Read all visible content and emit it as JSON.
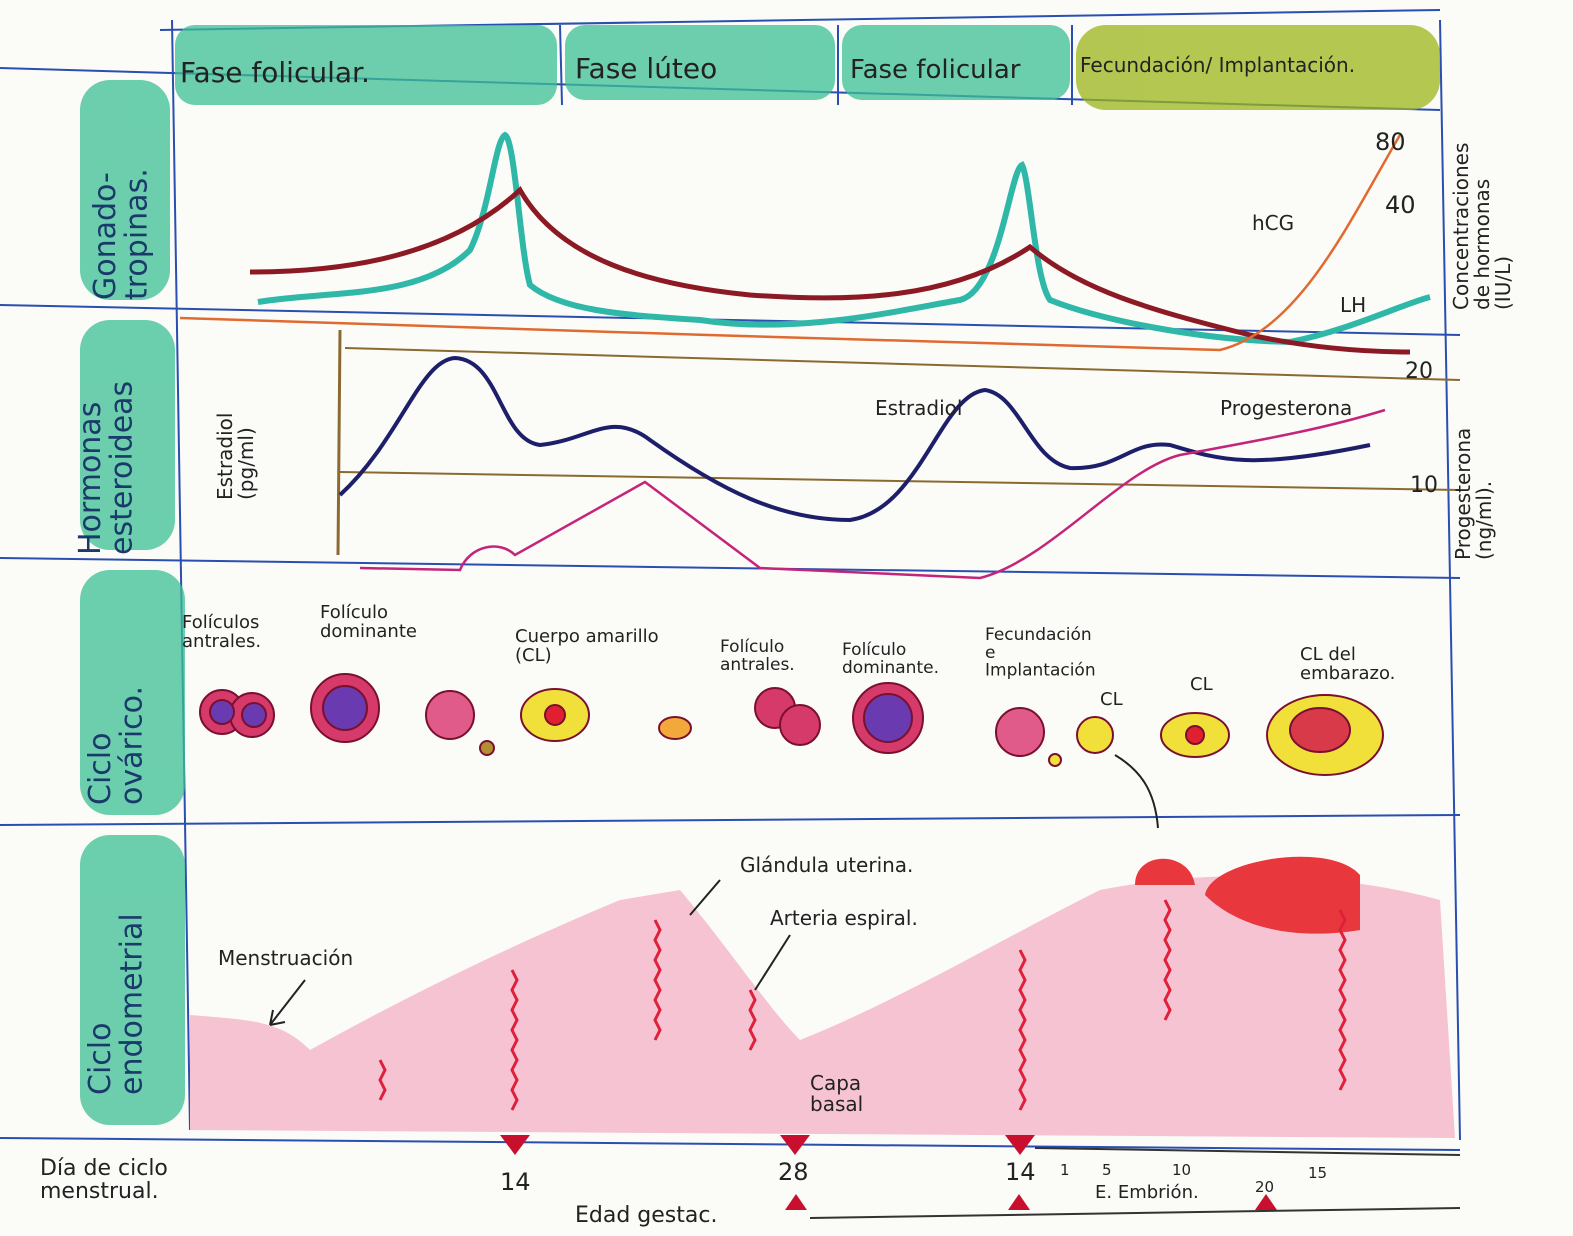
{
  "phases": [
    "Fase folicular.",
    "Fase lúteo",
    "Fase folicular",
    "Fecundación/ Implantación."
  ],
  "rows": [
    {
      "lines": [
        "Gonado-",
        "tropinas."
      ]
    },
    {
      "lines": [
        "Hormonas",
        "esteroideas"
      ]
    },
    {
      "lines": [
        "Ciclo",
        "ovárico."
      ]
    },
    {
      "lines": [
        "Ciclo",
        "endometrial"
      ]
    }
  ],
  "gonadotropins": {
    "axis_title": [
      "Concentraciones",
      "de hormonas",
      "(IU/L)"
    ],
    "ticks": [
      "80",
      "40"
    ],
    "hcg": "hCG",
    "lh": "LH"
  },
  "steroids": {
    "left_axis": [
      "Estradiol",
      "(pg/ml)"
    ],
    "right_axis": [
      "Progesterona",
      "(ng/ml)."
    ],
    "ticks": [
      "20",
      "10"
    ],
    "estradiol": "Estradiol",
    "progesterone": "Progesterona"
  },
  "ovarian": [
    [
      "Folículos",
      "antrales."
    ],
    [
      "Folículo",
      "dominante"
    ],
    [
      "Cuerpo amarillo",
      "(CL)"
    ],
    [
      "Folículo",
      "antrales."
    ],
    [
      "Folículo",
      "dominante."
    ],
    [
      "Fecundación",
      "e",
      "Implantación"
    ],
    [
      "CL"
    ],
    [
      "CL"
    ],
    [
      "CL del",
      "embarazo."
    ]
  ],
  "endometrial": {
    "gland": "Glándula uterina.",
    "artery": "Arteria espiral.",
    "menstruation": "Menstruación",
    "basal": [
      "Capa",
      "basal"
    ]
  },
  "timeline": {
    "label": [
      "Día de ciclo",
      "menstrual."
    ],
    "days": [
      "14",
      "28",
      "14"
    ],
    "gestational": "Edad gestac.",
    "embryo": "E. Embrión.",
    "embryo_ticks": [
      "1",
      "5",
      "10",
      "15",
      "20"
    ]
  }
}
